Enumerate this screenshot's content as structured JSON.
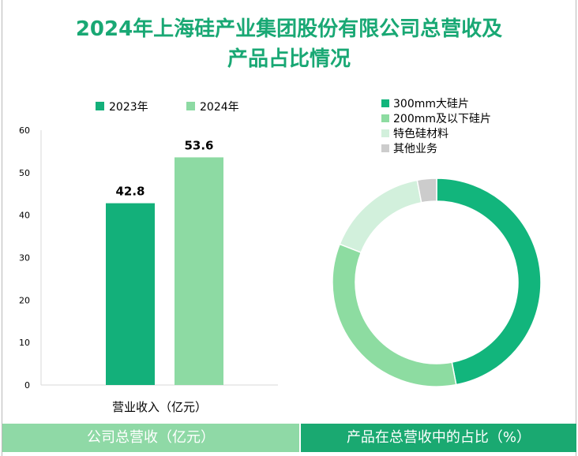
{
  "title_line1": "2024年上海硅产业集团股份有限公司总营收及",
  "title_line2": "产品占比情况",
  "colors": {
    "title": "#19a874",
    "series_2023": "#13b07a",
    "series_2024": "#8ddaa3",
    "pie": [
      "#12b57c",
      "#8ddca1",
      "#d2f0dc",
      "#cccccc"
    ]
  },
  "chart_data": [
    {
      "type": "bar",
      "categories": [
        "营业收入（亿元）"
      ],
      "series": [
        {
          "name": "2023年",
          "values": [
            42.8
          ]
        },
        {
          "name": "2024年",
          "values": [
            53.6
          ]
        }
      ],
      "data_labels": [
        "42.8",
        "53.6"
      ],
      "ylim": [
        0,
        60
      ],
      "yticks": [
        0,
        10,
        20,
        30,
        40,
        50,
        60
      ],
      "legend": "top",
      "grid": false
    },
    {
      "type": "pie",
      "donut": true,
      "labels": [
        "300mm大硅片",
        "200mm及以下硅片",
        "特色硅材料",
        "其他业务"
      ],
      "values": [
        47,
        34,
        16,
        3
      ],
      "legend": "top-left"
    }
  ],
  "footer": {
    "left": "公司总营收（亿元）",
    "right": "产品在总营收中的占比（%）"
  }
}
